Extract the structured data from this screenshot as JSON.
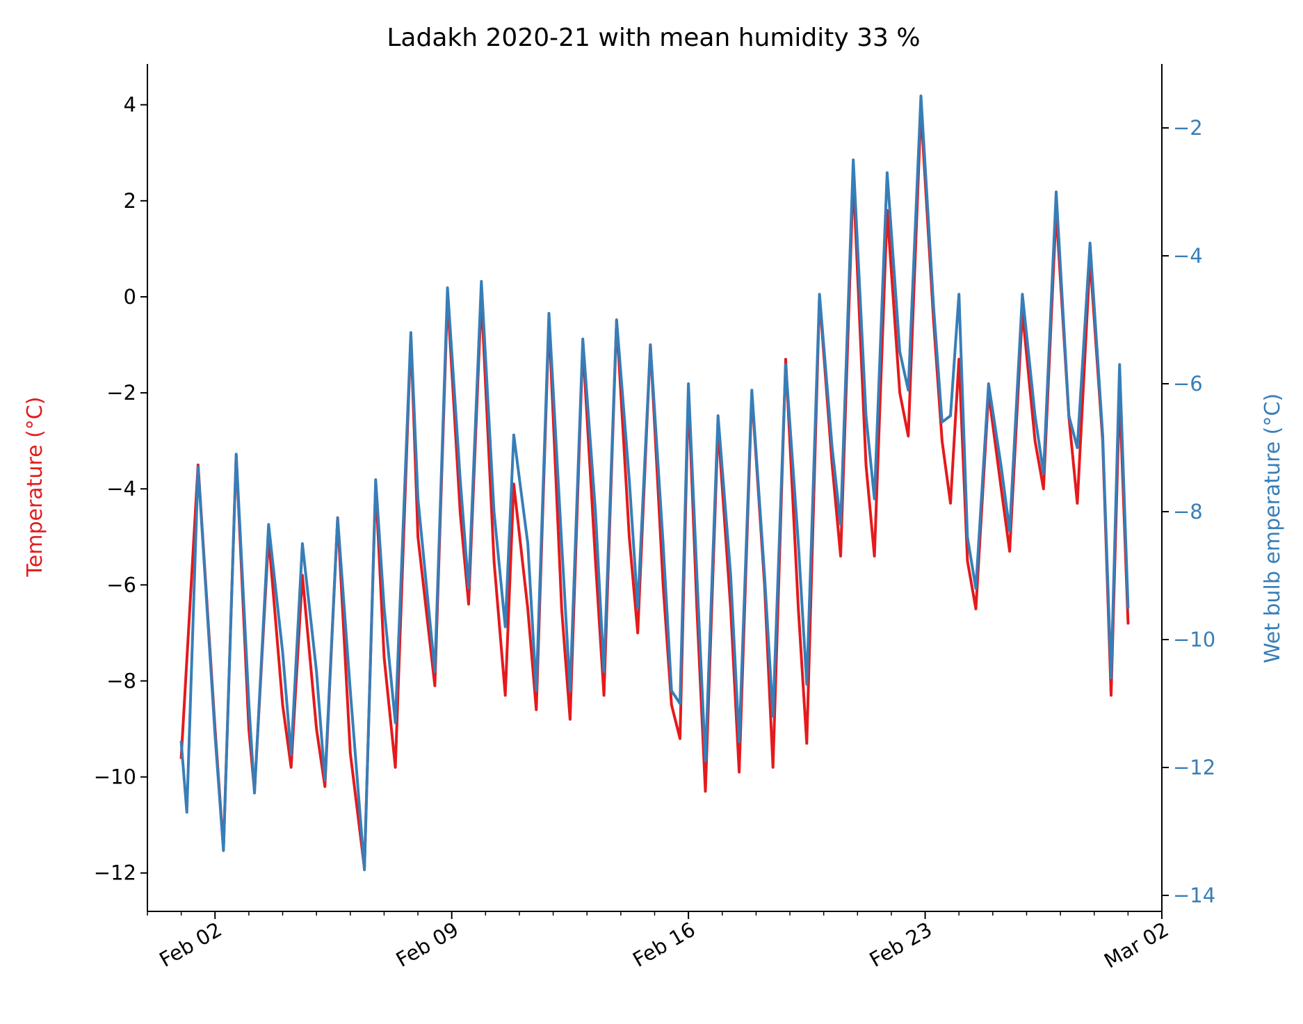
{
  "chart_data": {
    "type": "line",
    "title": "Ladakh 2020-21 with mean humidity 33 %",
    "xlabel": "",
    "y_left": {
      "label": "Temperature (°C)",
      "color": "#e41a1c",
      "range": [
        -12.8,
        4.85
      ],
      "ticks": [
        -12,
        -10,
        -8,
        -6,
        -4,
        -2,
        0,
        2,
        4
      ],
      "tick_labels": [
        "−12",
        "−10",
        "−8",
        "−6",
        "−4",
        "−2",
        "0",
        "2",
        "4"
      ]
    },
    "y_right": {
      "label": "Wet bulb emperature (°C)",
      "color": "#377eb8",
      "range": [
        -14.25,
        -1.0
      ],
      "ticks": [
        -14,
        -12,
        -10,
        -8,
        -6,
        -4,
        -2
      ],
      "tick_labels": [
        "−14",
        "−12",
        "−10",
        "−8",
        "−6",
        "−4",
        "−2"
      ]
    },
    "x_axis": {
      "range": [
        "2021-01-31",
        "2021-03-02"
      ],
      "major_ticks": [
        "2021-02-02",
        "2021-02-09",
        "2021-02-16",
        "2021-02-23",
        "2021-03-02"
      ],
      "major_tick_labels": [
        "Feb 02",
        "Feb 09",
        "Feb 16",
        "Feb 23",
        "Mar 02"
      ]
    },
    "grid": false,
    "series": [
      {
        "name": "Temperature",
        "axis": "left",
        "color": "#e41a1c",
        "points": [
          [
            "2021-02-01",
            -9.6
          ],
          [
            "2021-02-01 12:00",
            -3.5
          ],
          [
            "2021-02-02",
            -9.0
          ],
          [
            "2021-02-02 06:00",
            -11.5
          ],
          [
            "2021-02-02 15:00",
            -3.3
          ],
          [
            "2021-02-03",
            -9.0
          ],
          [
            "2021-02-03 04:00",
            -10.3
          ],
          [
            "2021-02-03 14:00",
            -5.0
          ],
          [
            "2021-02-04",
            -8.5
          ],
          [
            "2021-02-04 06:00",
            -9.8
          ],
          [
            "2021-02-04 14:00",
            -5.8
          ],
          [
            "2021-02-05",
            -9.0
          ],
          [
            "2021-02-05 06:00",
            -10.2
          ],
          [
            "2021-02-05 15:00",
            -4.6
          ],
          [
            "2021-02-06",
            -9.5
          ],
          [
            "2021-02-06 10:00",
            -11.9
          ],
          [
            "2021-02-06 18:00",
            -3.9
          ],
          [
            "2021-02-07",
            -7.5
          ],
          [
            "2021-02-07 08:00",
            -9.8
          ],
          [
            "2021-02-07 19:00",
            -0.8
          ],
          [
            "2021-02-08",
            -5.0
          ],
          [
            "2021-02-08 12:00",
            -8.1
          ],
          [
            "2021-02-08 21:00",
            0.0
          ],
          [
            "2021-02-09 06:00",
            -4.5
          ],
          [
            "2021-02-09 12:00",
            -6.4
          ],
          [
            "2021-02-09 21:00",
            0.0
          ],
          [
            "2021-02-10 06:00",
            -5.5
          ],
          [
            "2021-02-10 14:00",
            -8.3
          ],
          [
            "2021-02-10 20:00",
            -3.9
          ],
          [
            "2021-02-11 06:00",
            -6.5
          ],
          [
            "2021-02-11 12:00",
            -8.6
          ],
          [
            "2021-02-11 21:00",
            -0.5
          ],
          [
            "2021-02-12 06:00",
            -6.5
          ],
          [
            "2021-02-12 12:00",
            -8.8
          ],
          [
            "2021-02-12 21:00",
            -1.0
          ],
          [
            "2021-02-13 06:00",
            -5.5
          ],
          [
            "2021-02-13 12:00",
            -8.3
          ],
          [
            "2021-02-13 21:00",
            -0.5
          ],
          [
            "2021-02-14 06:00",
            -5.0
          ],
          [
            "2021-02-14 12:00",
            -7.0
          ],
          [
            "2021-02-14 21:00",
            -1.0
          ],
          [
            "2021-02-15 06:00",
            -6.0
          ],
          [
            "2021-02-15 12:00",
            -8.5
          ],
          [
            "2021-02-15 18:00",
            -9.2
          ],
          [
            "2021-02-16",
            -2.0
          ],
          [
            "2021-02-16 06:00",
            -6.5
          ],
          [
            "2021-02-16 12:00",
            -10.3
          ],
          [
            "2021-02-16 21:00",
            -2.7
          ],
          [
            "2021-02-17 06:00",
            -6.5
          ],
          [
            "2021-02-17 12:00",
            -9.9
          ],
          [
            "2021-02-17 21:00",
            -2.0
          ],
          [
            "2021-02-18 06:00",
            -6.0
          ],
          [
            "2021-02-18 12:00",
            -9.8
          ],
          [
            "2021-02-18 21:00",
            -1.3
          ],
          [
            "2021-02-19 06:00",
            -6.5
          ],
          [
            "2021-02-19 12:00",
            -9.3
          ],
          [
            "2021-02-19 21:00",
            0.0
          ],
          [
            "2021-02-20 06:00",
            -3.5
          ],
          [
            "2021-02-20 12:00",
            -5.4
          ],
          [
            "2021-02-20 21:00",
            2.5
          ],
          [
            "2021-02-21 06:00",
            -3.5
          ],
          [
            "2021-02-21 12:00",
            -5.4
          ],
          [
            "2021-02-21 21:00",
            1.8
          ],
          [
            "2021-02-22 06:00",
            -2.0
          ],
          [
            "2021-02-22 12:00",
            -2.9
          ],
          [
            "2021-02-22 21:00",
            3.9
          ],
          [
            "2021-02-23 06:00",
            -0.5
          ],
          [
            "2021-02-23 12:00",
            -3.0
          ],
          [
            "2021-02-23 18:00",
            -4.3
          ],
          [
            "2021-02-24",
            -1.3
          ],
          [
            "2021-02-24 06:00",
            -5.5
          ],
          [
            "2021-02-24 12:00",
            -6.5
          ],
          [
            "2021-02-24 21:00",
            -2.0
          ],
          [
            "2021-02-25 06:00",
            -4.0
          ],
          [
            "2021-02-25 12:00",
            -5.3
          ],
          [
            "2021-02-25 21:00",
            -0.3
          ],
          [
            "2021-02-26 06:00",
            -3.0
          ],
          [
            "2021-02-26 12:00",
            -4.0
          ],
          [
            "2021-02-26 21:00",
            1.8
          ],
          [
            "2021-02-27 06:00",
            -2.5
          ],
          [
            "2021-02-27 12:00",
            -4.3
          ],
          [
            "2021-02-27 21:00",
            0.8
          ],
          [
            "2021-02-28 06:00",
            -3.0
          ],
          [
            "2021-02-28 12:00",
            -8.3
          ],
          [
            "2021-02-28 18:00",
            -2.0
          ],
          [
            "2021-03-01",
            -6.8
          ]
        ]
      },
      {
        "name": "Wet bulb temperature",
        "axis": "right",
        "color": "#377eb8",
        "points": [
          [
            "2021-02-01",
            -11.6
          ],
          [
            "2021-02-01 04:00",
            -12.7
          ],
          [
            "2021-02-01 12:00",
            -7.3
          ],
          [
            "2021-02-02",
            -11.5
          ],
          [
            "2021-02-02 06:00",
            -13.3
          ],
          [
            "2021-02-02 15:00",
            -7.1
          ],
          [
            "2021-02-03",
            -11.0
          ],
          [
            "2021-02-03 04:00",
            -12.4
          ],
          [
            "2021-02-03 14:00",
            -8.2
          ],
          [
            "2021-02-04",
            -10.2
          ],
          [
            "2021-02-04 06:00",
            -11.8
          ],
          [
            "2021-02-04 14:00",
            -8.5
          ],
          [
            "2021-02-05",
            -10.5
          ],
          [
            "2021-02-05 06:00",
            -12.2
          ],
          [
            "2021-02-05 15:00",
            -8.1
          ],
          [
            "2021-02-06",
            -10.8
          ],
          [
            "2021-02-06 10:00",
            -13.6
          ],
          [
            "2021-02-06 18:00",
            -7.5
          ],
          [
            "2021-02-07",
            -9.5
          ],
          [
            "2021-02-07 08:00",
            -11.3
          ],
          [
            "2021-02-07 19:00",
            -5.2
          ],
          [
            "2021-02-08",
            -7.8
          ],
          [
            "2021-02-08 12:00",
            -10.5
          ],
          [
            "2021-02-08 21:00",
            -4.5
          ],
          [
            "2021-02-09 06:00",
            -7.5
          ],
          [
            "2021-02-09 12:00",
            -9.2
          ],
          [
            "2021-02-09 21:00",
            -4.4
          ],
          [
            "2021-02-10 06:00",
            -8.0
          ],
          [
            "2021-02-10 14:00",
            -9.8
          ],
          [
            "2021-02-10 20:00",
            -6.8
          ],
          [
            "2021-02-11 06:00",
            -8.5
          ],
          [
            "2021-02-11 12:00",
            -10.8
          ],
          [
            "2021-02-11 21:00",
            -4.9
          ],
          [
            "2021-02-12 06:00",
            -8.5
          ],
          [
            "2021-02-12 12:00",
            -10.8
          ],
          [
            "2021-02-12 21:00",
            -5.3
          ],
          [
            "2021-02-13 06:00",
            -8.0
          ],
          [
            "2021-02-13 12:00",
            -10.5
          ],
          [
            "2021-02-13 21:00",
            -5.0
          ],
          [
            "2021-02-14 06:00",
            -7.5
          ],
          [
            "2021-02-14 12:00",
            -9.5
          ],
          [
            "2021-02-14 21:00",
            -5.4
          ],
          [
            "2021-02-15 06:00",
            -8.5
          ],
          [
            "2021-02-15 12:00",
            -10.8
          ],
          [
            "2021-02-15 18:00",
            -11.0
          ],
          [
            "2021-02-16",
            -6.0
          ],
          [
            "2021-02-16 06:00",
            -9.0
          ],
          [
            "2021-02-16 12:00",
            -11.9
          ],
          [
            "2021-02-16 21:00",
            -6.5
          ],
          [
            "2021-02-17 06:00",
            -9.0
          ],
          [
            "2021-02-17 12:00",
            -11.6
          ],
          [
            "2021-02-17 21:00",
            -6.1
          ],
          [
            "2021-02-18 06:00",
            -9.0
          ],
          [
            "2021-02-18 12:00",
            -11.2
          ],
          [
            "2021-02-18 21:00",
            -5.7
          ],
          [
            "2021-02-19 06:00",
            -8.5
          ],
          [
            "2021-02-19 12:00",
            -10.7
          ],
          [
            "2021-02-19 21:00",
            -4.6
          ],
          [
            "2021-02-20 06:00",
            -7.0
          ],
          [
            "2021-02-20 12:00",
            -8.2
          ],
          [
            "2021-02-20 21:00",
            -2.5
          ],
          [
            "2021-02-21 06:00",
            -6.5
          ],
          [
            "2021-02-21 12:00",
            -7.8
          ],
          [
            "2021-02-21 21:00",
            -2.7
          ],
          [
            "2021-02-22 06:00",
            -5.5
          ],
          [
            "2021-02-22 12:00",
            -6.1
          ],
          [
            "2021-02-22 21:00",
            -1.5
          ],
          [
            "2021-02-23 06:00",
            -4.8
          ],
          [
            "2021-02-23 12:00",
            -6.6
          ],
          [
            "2021-02-23 18:00",
            -6.5
          ],
          [
            "2021-02-24",
            -4.6
          ],
          [
            "2021-02-24 06:00",
            -8.4
          ],
          [
            "2021-02-24 12:00",
            -9.2
          ],
          [
            "2021-02-24 21:00",
            -6.0
          ],
          [
            "2021-02-25 06:00",
            -7.3
          ],
          [
            "2021-02-25 12:00",
            -8.3
          ],
          [
            "2021-02-25 21:00",
            -4.6
          ],
          [
            "2021-02-26 06:00",
            -6.5
          ],
          [
            "2021-02-26 12:00",
            -7.4
          ],
          [
            "2021-02-26 21:00",
            -3.0
          ],
          [
            "2021-02-27 06:00",
            -6.5
          ],
          [
            "2021-02-27 12:00",
            -7.0
          ],
          [
            "2021-02-27 21:00",
            -3.8
          ],
          [
            "2021-02-28 06:00",
            -6.8
          ],
          [
            "2021-02-28 12:00",
            -10.6
          ],
          [
            "2021-02-28 18:00",
            -5.7
          ],
          [
            "2021-03-01",
            -9.5
          ]
        ]
      }
    ]
  }
}
